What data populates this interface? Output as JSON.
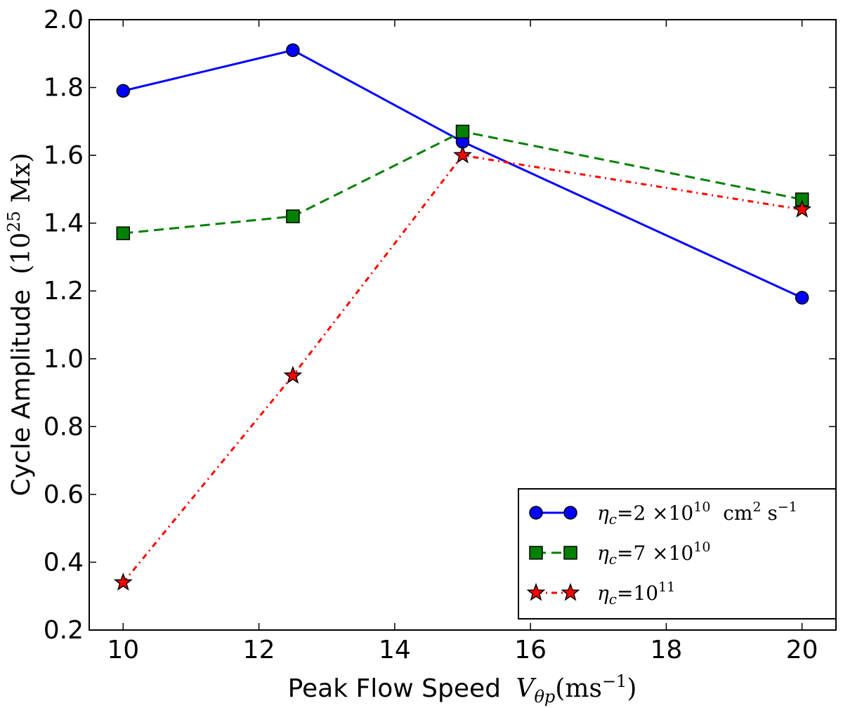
{
  "chart_data": {
    "type": "line",
    "title": "",
    "xlabel": {
      "text": "Peak Flow Speed",
      "symbol": "V",
      "symbol_sub": "θp",
      "unit_open": "(ms",
      "unit_exp": "−1",
      "unit_close": ")"
    },
    "ylabel": {
      "text": "Cycle Amplitude",
      "unit_open": "(10",
      "unit_exp": "25",
      "unit_rest": " Mx)"
    },
    "xlim": [
      9.5,
      20.5
    ],
    "ylim": [
      0.2,
      2.0
    ],
    "xticks": [
      10,
      12,
      14,
      16,
      18,
      20
    ],
    "xtick_labels": [
      "10",
      "12",
      "14",
      "16",
      "18",
      "20"
    ],
    "yticks": [
      0.2,
      0.4,
      0.6,
      0.8,
      1.0,
      1.2,
      1.4,
      1.6,
      1.8,
      2.0
    ],
    "ytick_labels": [
      "0.2",
      "0.4",
      "0.6",
      "0.8",
      "1.0",
      "1.2",
      "1.4",
      "1.6",
      "1.8",
      "2.0"
    ],
    "grid": false,
    "legend_position": "lower-right",
    "series": [
      {
        "name": "eta-c-2e10",
        "x": [
          10,
          12.5,
          15,
          20
        ],
        "values": [
          1.79,
          1.91,
          1.64,
          1.18
        ],
        "color": "#0000ff",
        "marker": "circle",
        "linestyle": "solid",
        "legend": {
          "prefix": "=2 ×10",
          "exp": "10",
          "suffix": "  cm",
          "unit_exp": "2",
          "suffix2": " s",
          "unit_exp2": "−1"
        }
      },
      {
        "name": "eta-c-7e10",
        "x": [
          10,
          12.5,
          15,
          20
        ],
        "values": [
          1.37,
          1.42,
          1.67,
          1.47
        ],
        "color": "#008000",
        "marker": "square",
        "linestyle": "dashed",
        "legend": {
          "prefix": "=7 ×10",
          "exp": "10"
        }
      },
      {
        "name": "eta-c-1e11",
        "x": [
          10,
          12.5,
          15,
          20
        ],
        "values": [
          0.34,
          0.95,
          1.6,
          1.44
        ],
        "color": "#ff0000",
        "marker": "star",
        "linestyle": "dashdot",
        "legend": {
          "prefix": "=10",
          "exp": "11"
        }
      }
    ],
    "legend_symbol": "η",
    "legend_symbol_sub": "c"
  }
}
